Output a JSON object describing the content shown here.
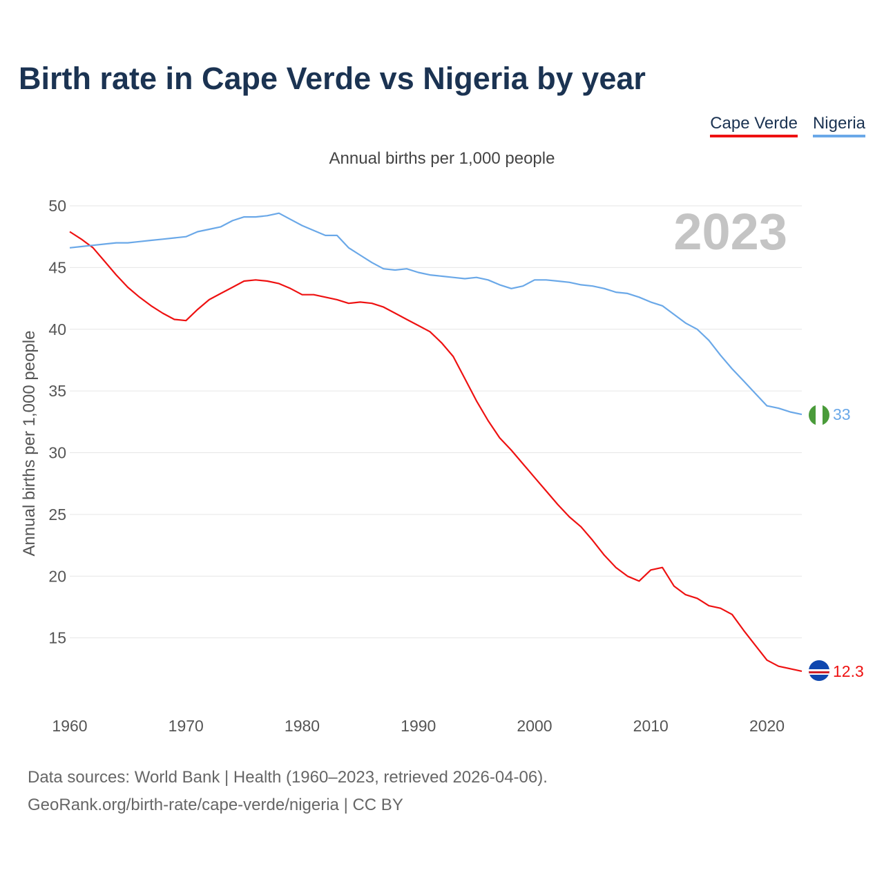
{
  "colors": {
    "cape_verde": "#ee1111",
    "nigeria": "#6aa8e8",
    "title": "#1b3352"
  },
  "sources": {
    "line1": "Data sources: World Bank | Health (1960–2023, retrieved 2026-04-06).",
    "line2": "GeoRank.org/birth-rate/cape-verde/nigeria | CC BY"
  },
  "chart_data": {
    "type": "line",
    "title": "Birth rate in Cape Verde vs Nigeria by year",
    "subtitle": "Annual births per 1,000 people",
    "ylabel": "Annual births per 1,000 people",
    "xlabel": "",
    "year_watermark": "2023",
    "xlim": [
      1960,
      2023
    ],
    "ylim": [
      10,
      50
    ],
    "yticks": [
      15,
      20,
      25,
      30,
      35,
      40,
      45,
      50
    ],
    "xticks": [
      1960,
      1970,
      1980,
      1990,
      2000,
      2010,
      2020
    ],
    "x": [
      1960,
      1961,
      1962,
      1963,
      1964,
      1965,
      1966,
      1967,
      1968,
      1969,
      1970,
      1971,
      1972,
      1973,
      1974,
      1975,
      1976,
      1977,
      1978,
      1979,
      1980,
      1981,
      1982,
      1983,
      1984,
      1985,
      1986,
      1987,
      1988,
      1989,
      1990,
      1991,
      1992,
      1993,
      1994,
      1995,
      1996,
      1997,
      1998,
      1999,
      2000,
      2001,
      2002,
      2003,
      2004,
      2005,
      2006,
      2007,
      2008,
      2009,
      2010,
      2011,
      2012,
      2013,
      2014,
      2015,
      2016,
      2017,
      2018,
      2019,
      2020,
      2021,
      2022,
      2023
    ],
    "series": [
      {
        "name": "Cape Verde",
        "color": "#ee1111",
        "end_label": "12.3",
        "values": [
          47.9,
          47.3,
          46.6,
          45.5,
          44.4,
          43.4,
          42.6,
          41.9,
          41.3,
          40.8,
          40.7,
          41.6,
          42.4,
          42.9,
          43.4,
          43.9,
          44.0,
          43.9,
          43.7,
          43.3,
          42.8,
          42.8,
          42.6,
          42.4,
          42.1,
          42.2,
          42.1,
          41.8,
          41.3,
          40.8,
          40.3,
          39.8,
          38.9,
          37.8,
          36.0,
          34.2,
          32.6,
          31.2,
          30.2,
          29.1,
          28.0,
          26.9,
          25.8,
          24.8,
          24.0,
          22.9,
          21.7,
          20.7,
          20.0,
          19.6,
          20.5,
          20.7,
          19.2,
          18.5,
          18.2,
          17.6,
          17.4,
          16.9,
          15.6,
          14.4,
          13.2,
          12.7,
          12.5,
          12.3
        ]
      },
      {
        "name": "Nigeria",
        "color": "#6aa8e8",
        "end_label": "33",
        "values": [
          46.6,
          46.7,
          46.8,
          46.9,
          47.0,
          47.0,
          47.1,
          47.2,
          47.3,
          47.4,
          47.5,
          47.9,
          48.1,
          48.3,
          48.8,
          49.1,
          49.1,
          49.2,
          49.4,
          48.9,
          48.4,
          48.0,
          47.6,
          47.6,
          46.6,
          46.0,
          45.4,
          44.9,
          44.8,
          44.9,
          44.6,
          44.4,
          44.3,
          44.2,
          44.1,
          44.2,
          44.0,
          43.6,
          43.3,
          43.5,
          44.0,
          44.0,
          43.9,
          43.8,
          43.6,
          43.5,
          43.3,
          43.0,
          42.9,
          42.6,
          42.2,
          41.9,
          41.2,
          40.5,
          40.0,
          39.1,
          37.9,
          36.8,
          35.8,
          34.8,
          33.8,
          33.6,
          33.3,
          33.1
        ]
      }
    ]
  }
}
